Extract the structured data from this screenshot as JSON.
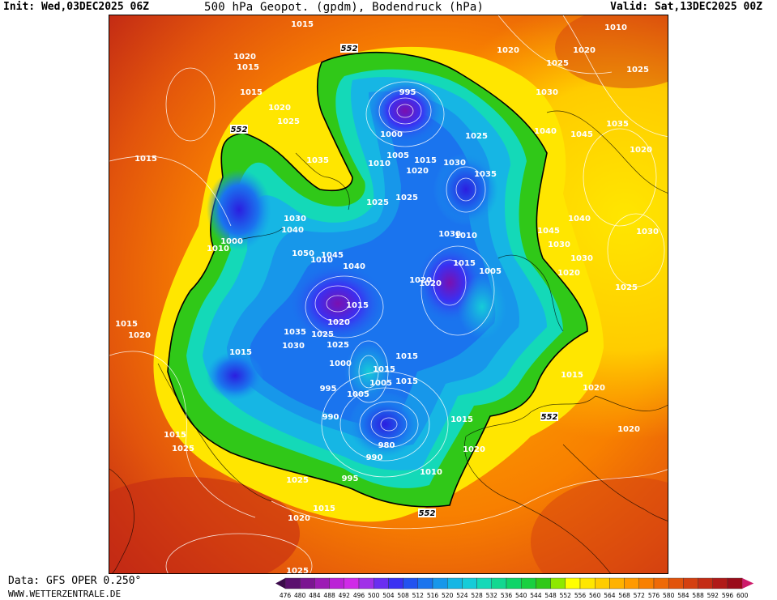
{
  "header": {
    "init": "Init: Wed,03DEC2025 06Z",
    "title": "500 hPa Geopot. (gpdm), Bodendruck (hPa)",
    "valid": "Valid: Sat,13DEC2025 00Z"
  },
  "footer": {
    "source": "Data: GFS OPER 0.250°",
    "website": "WWW.WETTERZENTRALE.DE"
  },
  "scale": {
    "ticks": [
      "476",
      "480",
      "484",
      "488",
      "492",
      "496",
      "500",
      "504",
      "508",
      "512",
      "516",
      "520",
      "524",
      "528",
      "532",
      "536",
      "540",
      "544",
      "548",
      "552",
      "556",
      "560",
      "564",
      "568",
      "572",
      "576",
      "580",
      "584",
      "588",
      "592",
      "596",
      "600"
    ],
    "colors": [
      "#3b0a4a",
      "#5a0f6e",
      "#7b1591",
      "#9c1bb4",
      "#bb22d6",
      "#d02ae8",
      "#a030e8",
      "#6a2ef0",
      "#3a30f2",
      "#2252f0",
      "#1a74ee",
      "#1797ea",
      "#16b6e4",
      "#16ccd8",
      "#14d9b8",
      "#12d890",
      "#10d468",
      "#18d040",
      "#30c818",
      "#8ee800",
      "#ffff00",
      "#ffe600",
      "#ffcc00",
      "#ffb200",
      "#ff9a00",
      "#f88000",
      "#ee6a06",
      "#e2540c",
      "#d44010",
      "#c42c14",
      "#b01a18",
      "#9a0c1a",
      "#ce1a6a"
    ]
  },
  "pressure_labels": [
    {
      "text": "1015",
      "pos": "n1"
    },
    {
      "text": "1010",
      "pos": "n2"
    },
    {
      "text": "1020",
      "pos": "n3"
    },
    {
      "text": "1025",
      "pos": "n4"
    },
    {
      "text": "1015",
      "pos": "n5"
    },
    {
      "text": "1020",
      "pos": "n6"
    },
    {
      "text": "1025",
      "pos": "n7"
    },
    {
      "text": "1015",
      "pos": "n8"
    },
    {
      "text": "995",
      "pos": "n9"
    },
    {
      "text": "1000",
      "pos": "n10"
    },
    {
      "text": "1005",
      "pos": "n11"
    },
    {
      "text": "1010",
      "pos": "n12"
    },
    {
      "text": "1015",
      "pos": "n13"
    },
    {
      "text": "1020",
      "pos": "n14"
    },
    {
      "text": "1030",
      "pos": "n15"
    },
    {
      "text": "1025",
      "pos": "n16"
    },
    {
      "text": "1035",
      "pos": "n17"
    },
    {
      "text": "1035",
      "pos": "n18"
    },
    {
      "text": "1025",
      "pos": "n19"
    },
    {
      "text": "1025",
      "pos": "n20"
    },
    {
      "text": "1030",
      "pos": "n21"
    },
    {
      "text": "1030",
      "pos": "n22"
    },
    {
      "text": "1040",
      "pos": "n23"
    },
    {
      "text": "1010",
      "pos": "n24"
    },
    {
      "text": "1000",
      "pos": "n25"
    },
    {
      "text": "1050",
      "pos": "n26"
    },
    {
      "text": "1045",
      "pos": "n27"
    },
    {
      "text": "1040",
      "pos": "n28"
    },
    {
      "text": "1015",
      "pos": "n29"
    },
    {
      "text": "1020",
      "pos": "n30"
    },
    {
      "text": "1035",
      "pos": "n31"
    },
    {
      "text": "1025",
      "pos": "n32"
    },
    {
      "text": "1030",
      "pos": "n33"
    },
    {
      "text": "1015",
      "pos": "n34"
    },
    {
      "text": "1010",
      "pos": "n35"
    },
    {
      "text": "1005",
      "pos": "n36"
    },
    {
      "text": "1015",
      "pos": "n37"
    },
    {
      "text": "1020",
      "pos": "n38"
    },
    {
      "text": "1000",
      "pos": "n39"
    },
    {
      "text": "995",
      "pos": "n40"
    },
    {
      "text": "1005",
      "pos": "n41"
    },
    {
      "text": "1015",
      "pos": "n42"
    },
    {
      "text": "1015",
      "pos": "n43"
    },
    {
      "text": "990",
      "pos": "n44"
    },
    {
      "text": "980",
      "pos": "n45"
    },
    {
      "text": "990",
      "pos": "n46"
    },
    {
      "text": "995",
      "pos": "n47"
    },
    {
      "text": "1010",
      "pos": "n48"
    },
    {
      "text": "1030",
      "pos": "n49"
    },
    {
      "text": "1025",
      "pos": "n50"
    },
    {
      "text": "1015",
      "pos": "n51"
    },
    {
      "text": "1005",
      "pos": "n52"
    },
    {
      "text": "1020",
      "pos": "n53"
    },
    {
      "text": "1040",
      "pos": "n54"
    },
    {
      "text": "1045",
      "pos": "n55"
    },
    {
      "text": "1040",
      "pos": "n56"
    },
    {
      "text": "1045",
      "pos": "n57"
    },
    {
      "text": "1035",
      "pos": "n58"
    },
    {
      "text": "1020",
      "pos": "n59"
    },
    {
      "text": "1030",
      "pos": "n60"
    },
    {
      "text": "1030",
      "pos": "n61"
    },
    {
      "text": "1020",
      "pos": "n62"
    },
    {
      "text": "1025",
      "pos": "n63"
    },
    {
      "text": "1030",
      "pos": "n64"
    },
    {
      "text": "1015",
      "pos": "n65"
    },
    {
      "text": "1020",
      "pos": "n66"
    },
    {
      "text": "1020",
      "pos": "n67"
    },
    {
      "text": "1015",
      "pos": "n68"
    },
    {
      "text": "1020",
      "pos": "n69"
    },
    {
      "text": "1025",
      "pos": "n70"
    },
    {
      "text": "1015",
      "pos": "n71"
    },
    {
      "text": "1025",
      "pos": "n72"
    },
    {
      "text": "1015",
      "pos": "n73"
    },
    {
      "text": "1020",
      "pos": "n74"
    },
    {
      "text": "1015",
      "pos": "n75"
    },
    {
      "text": "1020",
      "pos": "n76"
    },
    {
      "text": "1025",
      "pos": "n77"
    },
    {
      "text": "1010",
      "pos": "n78"
    },
    {
      "text": "1020",
      "pos": "n79"
    },
    {
      "text": "1025",
      "pos": "n80"
    },
    {
      "text": "1015",
      "pos": "n81"
    },
    {
      "text": "1020",
      "pos": "n82"
    }
  ],
  "contour_552_labels": [
    "552",
    "552",
    "552",
    "552"
  ]
}
